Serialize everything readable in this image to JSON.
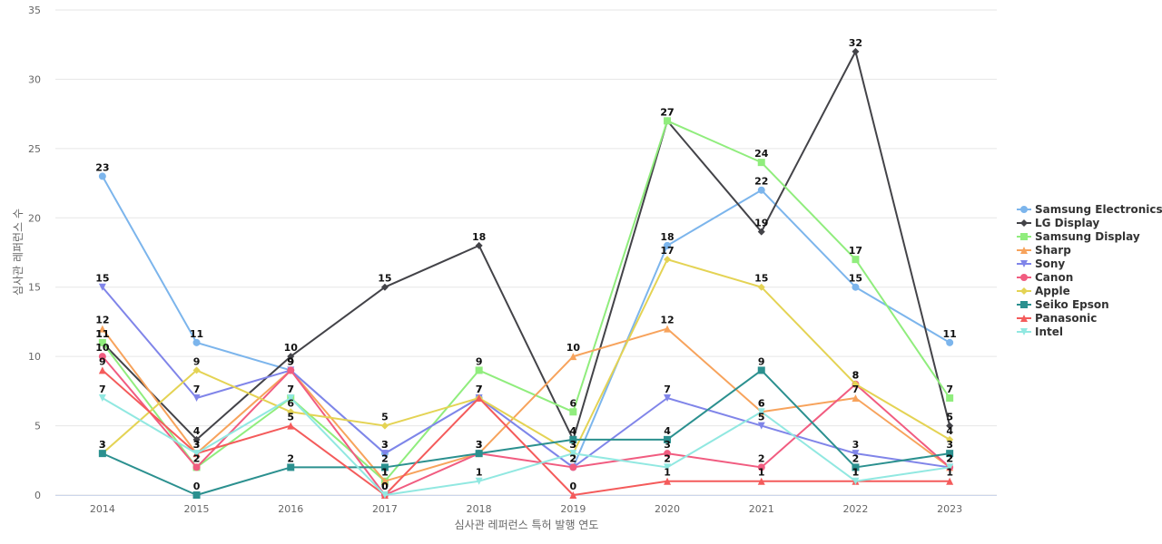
{
  "chart_data": {
    "type": "line",
    "title": "",
    "xlabel": "심사관 레퍼런스 특허 발행 연도",
    "ylabel": "심사관 레퍼런스 수",
    "ylim": [
      0,
      35
    ],
    "y_ticks": [
      0,
      5,
      10,
      15,
      20,
      25,
      30,
      35
    ],
    "grid": "horizontal",
    "legend_position": "right",
    "categories": [
      "2014",
      "2015",
      "2016",
      "2017",
      "2018",
      "2019",
      "2020",
      "2021",
      "2022",
      "2023"
    ],
    "series": [
      {
        "name": "Samsung Electronics",
        "color": "#7cb5ec",
        "marker": "circle",
        "values": [
          23,
          11,
          9,
          3,
          7,
          2,
          18,
          22,
          15,
          11
        ]
      },
      {
        "name": "LG Display",
        "color": "#434348",
        "marker": "diamond",
        "values": [
          11,
          4,
          10,
          15,
          18,
          4,
          27,
          19,
          32,
          5
        ]
      },
      {
        "name": "Samsung Display",
        "color": "#90ed7d",
        "marker": "square",
        "values": [
          11,
          2,
          7,
          1,
          9,
          6,
          27,
          24,
          17,
          7
        ]
      },
      {
        "name": "Sharp",
        "color": "#f7a35c",
        "marker": "triangle",
        "values": [
          12,
          3,
          9,
          1,
          3,
          10,
          12,
          6,
          7,
          2
        ]
      },
      {
        "name": "Sony",
        "color": "#8085e9",
        "marker": "triangle-down",
        "values": [
          15,
          7,
          9,
          3,
          7,
          2,
          7,
          5,
          3,
          2
        ]
      },
      {
        "name": "Canon",
        "color": "#f15c80",
        "marker": "circle",
        "values": [
          10,
          2,
          9,
          0,
          3,
          2,
          3,
          2,
          8,
          2
        ]
      },
      {
        "name": "Apple",
        "color": "#e4d354",
        "marker": "diamond",
        "values": [
          3,
          9,
          6,
          5,
          7,
          3,
          17,
          15,
          8,
          4
        ]
      },
      {
        "name": "Seiko Epson",
        "color": "#2b908f",
        "marker": "square",
        "values": [
          3,
          0,
          2,
          2,
          3,
          4,
          4,
          9,
          2,
          3
        ]
      },
      {
        "name": "Panasonic",
        "color": "#f45b5b",
        "marker": "triangle",
        "values": [
          9,
          3,
          5,
          0,
          7,
          0,
          1,
          1,
          1,
          1
        ]
      },
      {
        "name": "Intel",
        "color": "#91e8e1",
        "marker": "triangle-down",
        "values": [
          7,
          3,
          7,
          0,
          1,
          3,
          2,
          6,
          1,
          2
        ]
      }
    ]
  }
}
